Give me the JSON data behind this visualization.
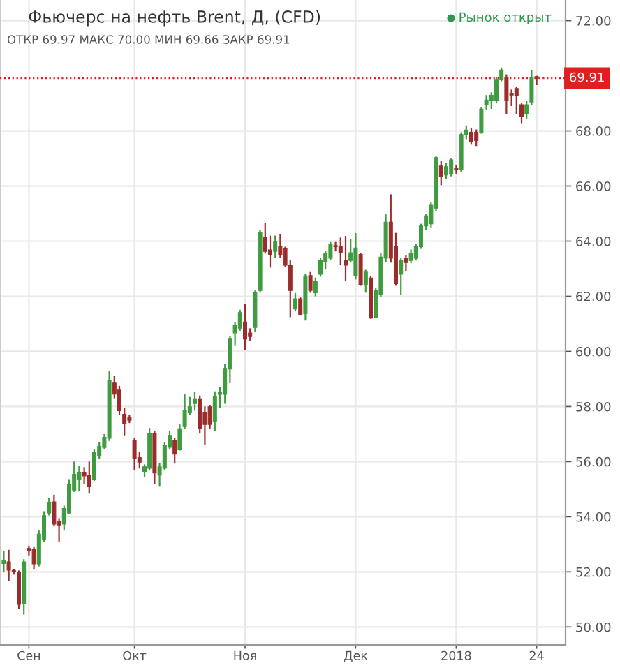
{
  "chart_data": {
    "type": "candlestick",
    "title": "Фьючерс на нефть Brent, Д, (CFD)",
    "subtitle": "ОТКР 69.97 МАКС 70.00 МИН 69.66 ЗАКР 69.91",
    "annotations": [
      "Рынок открыт"
    ],
    "categories": [
      null,
      null,
      null,
      null,
      null,
      "Сен",
      null,
      null,
      null,
      null,
      null,
      null,
      null,
      null,
      null,
      null,
      null,
      null,
      null,
      null,
      null,
      null,
      null,
      null,
      null,
      null,
      "Окт",
      null,
      null,
      null,
      null,
      null,
      null,
      null,
      null,
      null,
      null,
      null,
      null,
      null,
      null,
      null,
      null,
      null,
      null,
      null,
      null,
      null,
      "Ноя",
      null,
      null,
      null,
      null,
      null,
      null,
      null,
      null,
      null,
      null,
      null,
      null,
      null,
      null,
      null,
      null,
      null,
      null,
      null,
      null,
      null,
      "Дек",
      null,
      null,
      null,
      null,
      null,
      null,
      null,
      null,
      null,
      null,
      null,
      null,
      null,
      null,
      null,
      null,
      null,
      null,
      null,
      "2018",
      null,
      null,
      null,
      null,
      null,
      null,
      null,
      null,
      null,
      null,
      null,
      null,
      null,
      null,
      null,
      "24"
    ],
    "ohlc": [
      [
        52.3,
        52.75,
        52.0,
        52.4
      ],
      [
        52.36,
        52.8,
        51.66,
        52.06
      ],
      [
        52.05,
        52.1,
        51.9,
        52.0
      ],
      [
        51.99,
        52.05,
        50.65,
        50.82
      ],
      [
        50.85,
        52.46,
        50.45,
        52.36
      ],
      [
        52.85,
        52.95,
        52.6,
        52.78
      ],
      [
        52.83,
        52.9,
        52.08,
        52.29
      ],
      [
        52.29,
        53.5,
        52.2,
        53.37
      ],
      [
        53.17,
        54.2,
        53.1,
        54.04
      ],
      [
        54.14,
        54.67,
        54.05,
        54.5
      ],
      [
        54.54,
        54.8,
        53.65,
        53.73
      ],
      [
        53.83,
        53.95,
        53.1,
        53.7
      ],
      [
        53.73,
        54.4,
        53.5,
        54.3
      ],
      [
        54.14,
        55.34,
        54.1,
        55.18
      ],
      [
        54.97,
        56.0,
        54.9,
        55.54
      ],
      [
        55.34,
        55.84,
        54.92,
        55.59
      ],
      [
        55.59,
        55.8,
        55.2,
        55.48
      ],
      [
        55.51,
        56.0,
        54.84,
        55.09
      ],
      [
        55.34,
        56.45,
        55.3,
        56.35
      ],
      [
        56.22,
        56.7,
        56.1,
        56.55
      ],
      [
        56.51,
        57.0,
        56.45,
        56.88
      ],
      [
        56.85,
        59.3,
        56.75,
        58.95
      ],
      [
        58.85,
        59.1,
        58.3,
        58.45
      ],
      [
        58.6,
        58.75,
        57.7,
        57.85
      ],
      [
        57.72,
        57.95,
        56.93,
        57.39
      ],
      [
        57.6,
        57.7,
        57.4,
        57.5
      ],
      [
        56.77,
        56.85,
        55.7,
        56.1
      ],
      [
        56.15,
        56.35,
        55.75,
        55.98
      ],
      [
        55.64,
        55.9,
        55.43,
        55.81
      ],
      [
        55.76,
        57.22,
        55.7,
        57.02
      ],
      [
        57.02,
        57.1,
        55.18,
        55.59
      ],
      [
        55.51,
        55.95,
        55.09,
        55.81
      ],
      [
        55.76,
        56.7,
        55.7,
        56.6
      ],
      [
        56.52,
        57.1,
        56.45,
        56.93
      ],
      [
        56.77,
        56.85,
        55.93,
        56.27
      ],
      [
        56.43,
        57.35,
        56.4,
        57.19
      ],
      [
        57.27,
        58.44,
        57.2,
        57.85
      ],
      [
        57.77,
        58.35,
        57.7,
        57.99
      ],
      [
        58.11,
        58.53,
        57.85,
        58.28
      ],
      [
        58.28,
        58.4,
        57.02,
        57.19
      ],
      [
        57.77,
        58.0,
        56.6,
        57.35
      ],
      [
        57.99,
        58.05,
        57.2,
        57.35
      ],
      [
        57.44,
        58.55,
        57.1,
        58.36
      ],
      [
        58.44,
        58.72,
        57.95,
        58.53
      ],
      [
        58.44,
        59.53,
        58.1,
        59.36
      ],
      [
        59.36,
        60.55,
        58.85,
        60.45
      ],
      [
        60.67,
        61.07,
        60.2,
        60.95
      ],
      [
        60.84,
        61.51,
        60.75,
        61.41
      ],
      [
        61.07,
        61.71,
        60.05,
        60.45
      ],
      [
        60.67,
        60.84,
        60.37,
        60.54
      ],
      [
        60.87,
        62.21,
        60.7,
        62.13
      ],
      [
        62.21,
        64.42,
        62.13,
        64.31
      ],
      [
        64.14,
        64.65,
        63.55,
        63.63
      ],
      [
        63.68,
        64.2,
        63.04,
        63.52
      ],
      [
        63.63,
        64.2,
        63.4,
        63.97
      ],
      [
        63.8,
        64.24,
        63.4,
        63.52
      ],
      [
        63.72,
        63.8,
        63.05,
        63.13
      ],
      [
        63.13,
        63.3,
        61.24,
        62.21
      ],
      [
        61.54,
        62.12,
        61.45,
        61.91
      ],
      [
        61.91,
        61.96,
        61.3,
        61.34
      ],
      [
        61.37,
        62.8,
        61.12,
        62.71
      ],
      [
        62.75,
        62.88,
        62.13,
        62.21
      ],
      [
        62.13,
        62.68,
        62.0,
        62.55
      ],
      [
        62.8,
        63.38,
        62.71,
        63.3
      ],
      [
        63.25,
        63.64,
        62.97,
        63.55
      ],
      [
        63.38,
        63.97,
        63.3,
        63.89
      ],
      [
        63.84,
        63.97,
        63.63,
        63.8
      ],
      [
        63.8,
        64.13,
        63.13,
        63.58
      ],
      [
        63.3,
        64.19,
        62.55,
        63.13
      ],
      [
        63.3,
        64.08,
        63.22,
        63.58
      ],
      [
        62.75,
        64.29,
        62.61,
        63.75
      ],
      [
        63.52,
        63.58,
        62.38,
        62.41
      ],
      [
        62.41,
        62.96,
        62.13,
        62.88
      ],
      [
        62.66,
        62.75,
        61.18,
        61.21
      ],
      [
        61.24,
        62.3,
        61.21,
        62.21
      ],
      [
        62.08,
        63.58,
        61.98,
        63.42
      ],
      [
        63.38,
        64.97,
        63.25,
        64.69
      ],
      [
        64.69,
        65.7,
        63.22,
        63.38
      ],
      [
        63.8,
        64.3,
        62.38,
        62.46
      ],
      [
        62.8,
        63.38,
        62.05,
        63.3
      ],
      [
        63.38,
        63.5,
        62.9,
        63.22
      ],
      [
        63.3,
        63.7,
        63.2,
        63.55
      ],
      [
        63.38,
        63.9,
        63.3,
        63.8
      ],
      [
        63.8,
        64.63,
        63.72,
        64.55
      ],
      [
        64.55,
        65.0,
        64.4,
        64.92
      ],
      [
        64.63,
        65.4,
        64.5,
        65.3
      ],
      [
        65.2,
        67.1,
        65.1,
        67.03
      ],
      [
        66.73,
        66.9,
        66.03,
        66.36
      ],
      [
        66.4,
        66.85,
        66.25,
        66.7
      ],
      [
        66.45,
        67.0,
        66.35,
        66.95
      ],
      [
        66.65,
        66.75,
        66.45,
        66.61
      ],
      [
        66.61,
        67.95,
        66.5,
        67.87
      ],
      [
        67.87,
        68.2,
        67.7,
        68.03
      ],
      [
        67.95,
        68.1,
        67.5,
        67.61
      ],
      [
        67.95,
        68.05,
        67.45,
        67.65
      ],
      [
        67.95,
        68.85,
        67.9,
        68.79
      ],
      [
        68.95,
        69.3,
        68.75,
        69.12
      ],
      [
        69.12,
        69.4,
        68.8,
        69.29
      ],
      [
        69.12,
        69.95,
        69.0,
        69.87
      ],
      [
        69.87,
        70.3,
        69.8,
        70.21
      ],
      [
        69.95,
        70.05,
        68.62,
        69.12
      ],
      [
        69.37,
        69.5,
        68.9,
        69.3
      ],
      [
        69.54,
        69.6,
        68.62,
        69.29
      ],
      [
        68.95,
        69.0,
        68.28,
        68.53
      ],
      [
        68.62,
        69.1,
        68.45,
        68.95
      ],
      [
        69.05,
        70.2,
        68.95,
        69.95
      ],
      [
        69.97,
        70.0,
        69.66,
        69.91
      ]
    ],
    "colors": [
      "#3e9b3e",
      "#9b2c2c",
      "#9b2c2c",
      "#9b2c2c",
      "#3e9b3e",
      "#9b2c2c",
      "#9b2c2c",
      "#3e9b3e",
      "#3e9b3e",
      "#3e9b3e",
      "#9b2c2c",
      "#9b2c2c",
      "#3e9b3e",
      "#3e9b3e",
      "#3e9b3e",
      "#3e9b3e",
      "#9b2c2c",
      "#9b2c2c",
      "#3e9b3e",
      "#3e9b3e",
      "#3e9b3e",
      "#3e9b3e",
      "#9b2c2c",
      "#9b2c2c",
      "#9b2c2c",
      "#9b2c2c",
      "#9b2c2c",
      "#9b2c2c",
      "#3e9b3e",
      "#3e9b3e",
      "#9b2c2c",
      "#3e9b3e",
      "#3e9b3e",
      "#3e9b3e",
      "#9b2c2c",
      "#3e9b3e",
      "#3e9b3e",
      "#3e9b3e",
      "#3e9b3e",
      "#9b2c2c",
      "#9b2c2c",
      "#9b2c2c",
      "#3e9b3e",
      "#3e9b3e",
      "#3e9b3e",
      "#3e9b3e",
      "#3e9b3e",
      "#3e9b3e",
      "#9b2c2c",
      "#9b2c2c",
      "#3e9b3e",
      "#3e9b3e",
      "#9b2c2c",
      "#9b2c2c",
      "#3e9b3e",
      "#9b2c2c",
      "#9b2c2c",
      "#9b2c2c",
      "#3e9b3e",
      "#9b2c2c",
      "#3e9b3e",
      "#9b2c2c",
      "#3e9b3e",
      "#3e9b3e",
      "#3e9b3e",
      "#3e9b3e",
      "#9b2c2c",
      "#9b2c2c",
      "#9b2c2c",
      "#3e9b3e",
      "#3e9b3e",
      "#9b2c2c",
      "#3e9b3e",
      "#9b2c2c",
      "#3e9b3e",
      "#3e9b3e",
      "#3e9b3e",
      "#9b2c2c",
      "#9b2c2c",
      "#3e9b3e",
      "#9b2c2c",
      "#3e9b3e",
      "#3e9b3e",
      "#3e9b3e",
      "#3e9b3e",
      "#3e9b3e",
      "#3e9b3e",
      "#9b2c2c",
      "#3e9b3e",
      "#3e9b3e",
      "#9b2c2c",
      "#3e9b3e",
      "#3e9b3e",
      "#9b2c2c",
      "#9b2c2c",
      "#3e9b3e",
      "#3e9b3e",
      "#3e9b3e",
      "#3e9b3e",
      "#3e9b3e",
      "#9b2c2c",
      "#9b2c2c",
      "#9b2c2c",
      "#9b2c2c",
      "#3e9b3e",
      "#3e9b3e",
      "#9b2c2c"
    ],
    "ylim": [
      49.35,
      72.75
    ],
    "yticks": [
      {
        "value": 50,
        "label": "50.00"
      },
      {
        "value": 52,
        "label": "52.00"
      },
      {
        "value": 54,
        "label": "54.00"
      },
      {
        "value": 56,
        "label": "56.00"
      },
      {
        "value": 58,
        "label": "58.00"
      },
      {
        "value": 60,
        "label": "60.00"
      },
      {
        "value": 62,
        "label": "62.00"
      },
      {
        "value": 64,
        "label": "64.00"
      },
      {
        "value": 66,
        "label": "66.00"
      },
      {
        "value": 68,
        "label": "68.00"
      },
      {
        "value": 72,
        "label": "72.00"
      }
    ],
    "grid": true,
    "ref_lines": [
      {
        "axis": "y",
        "value": 69.91,
        "label": "69.91",
        "color": "#e02020",
        "line_style": "dotted"
      }
    ]
  }
}
